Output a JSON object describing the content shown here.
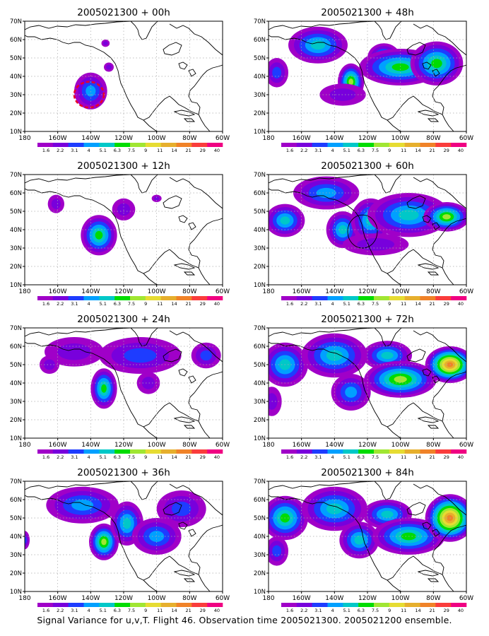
{
  "footer": "Signal Variance for u,v,T. Flight 46. Observation time 2005021300. 2005021200 ensemble.",
  "colors": {
    "levels": [
      "#a000c8",
      "#7800dc",
      "#1e3cff",
      "#00a0ff",
      "#00c8c8",
      "#00dc00",
      "#a0e632",
      "#e6dc32",
      "#e6af2d",
      "#f08228",
      "#fa3c3c",
      "#f00082"
    ],
    "land": "#ffffff",
    "coast": "#000000",
    "grid": "#aaaaaa"
  },
  "chart_data": [
    {
      "type": "heatmap",
      "title": "2005021300 + 00h",
      "xticks": [
        "180",
        "160W",
        "140W",
        "120W",
        "100W",
        "80W",
        "60W"
      ],
      "yticks": [
        "70N",
        "60N",
        "50N",
        "40N",
        "30N",
        "20N",
        "10N"
      ],
      "xlim": [
        -180,
        -60
      ],
      "ylim": [
        10,
        70
      ],
      "colorbar_labels": [
        "1.6",
        "2.2",
        "3.1",
        "4",
        "5.1",
        "6.3",
        "7.5",
        "9",
        "11",
        "14",
        "21",
        "29",
        "40"
      ],
      "blobs": [
        {
          "lon": -140,
          "lat": 32,
          "rlon": 10,
          "rlat": 10,
          "peak": 3
        },
        {
          "lon": -129,
          "lat": 45,
          "rlon": 3,
          "rlat": 2.5,
          "peak": 1
        },
        {
          "lon": -131,
          "lat": 58,
          "rlon": 2.5,
          "rlat": 2,
          "peak": 1
        }
      ],
      "obs_ring": {
        "lon": -141,
        "lat": 30,
        "rlon": 9,
        "rlat": 7,
        "color": "#e8002a"
      }
    },
    {
      "type": "heatmap",
      "title": "2005021300 + 48h",
      "xticks": [
        "180",
        "160W",
        "140W",
        "120W",
        "100W",
        "80W",
        "60W"
      ],
      "yticks": [
        "70N",
        "60N",
        "50N",
        "40N",
        "30N",
        "20N",
        "10N"
      ],
      "xlim": [
        -180,
        -60
      ],
      "ylim": [
        10,
        70
      ],
      "colorbar_labels": [
        "1.6",
        "2.2",
        "3.1",
        "4",
        "5.1",
        "6.3",
        "7.5",
        "9",
        "11",
        "14",
        "21",
        "29",
        "40"
      ],
      "blobs": [
        {
          "lon": -175,
          "lat": 42,
          "rlon": 7,
          "rlat": 8,
          "peak": 2
        },
        {
          "lon": -150,
          "lat": 57,
          "rlon": 18,
          "rlat": 10,
          "peak": 4
        },
        {
          "lon": -130,
          "lat": 37,
          "rlon": 8,
          "rlat": 10,
          "peak": 6
        },
        {
          "lon": -110,
          "lat": 50,
          "rlon": 10,
          "rlat": 8,
          "peak": 4
        },
        {
          "lon": -100,
          "lat": 45,
          "rlon": 25,
          "rlat": 10,
          "peak": 5
        },
        {
          "lon": -78,
          "lat": 47,
          "rlon": 16,
          "rlat": 12,
          "peak": 5
        },
        {
          "lon": -135,
          "lat": 30,
          "rlon": 14,
          "rlat": 6,
          "peak": 1
        }
      ]
    },
    {
      "type": "heatmap",
      "title": "2005021300 + 12h",
      "xticks": [
        "180",
        "160W",
        "140W",
        "120W",
        "100W",
        "80W",
        "60W"
      ],
      "yticks": [
        "70N",
        "60N",
        "50N",
        "40N",
        "30N",
        "20N",
        "10N"
      ],
      "xlim": [
        -180,
        -60
      ],
      "ylim": [
        10,
        70
      ],
      "colorbar_labels": [
        "1.6",
        "2.2",
        "3.1",
        "4",
        "5.1",
        "6.3",
        "7.5",
        "9",
        "11",
        "14",
        "21",
        "29",
        "40"
      ],
      "blobs": [
        {
          "lon": -135,
          "lat": 37,
          "rlon": 11,
          "rlat": 11,
          "peak": 5
        },
        {
          "lon": -161,
          "lat": 54,
          "rlon": 5,
          "rlat": 5,
          "peak": 1
        },
        {
          "lon": -120,
          "lat": 51,
          "rlon": 7,
          "rlat": 6,
          "peak": 1
        },
        {
          "lon": -100,
          "lat": 57,
          "rlon": 3,
          "rlat": 2,
          "peak": 1
        }
      ]
    },
    {
      "type": "heatmap",
      "title": "2005021300 + 60h",
      "xticks": [
        "180",
        "160W",
        "140W",
        "120W",
        "100W",
        "80W",
        "60W"
      ],
      "yticks": [
        "70N",
        "60N",
        "50N",
        "40N",
        "30N",
        "20N",
        "10N"
      ],
      "xlim": [
        -180,
        -60
      ],
      "ylim": [
        10,
        70
      ],
      "colorbar_labels": [
        "1.6",
        "2.2",
        "3.1",
        "4",
        "5.1",
        "6.3",
        "7.5",
        "9",
        "11",
        "14",
        "21",
        "29",
        "40"
      ],
      "blobs": [
        {
          "lon": -170,
          "lat": 45,
          "rlon": 12,
          "rlat": 9,
          "peak": 4
        },
        {
          "lon": -145,
          "lat": 60,
          "rlon": 20,
          "rlat": 9,
          "peak": 3
        },
        {
          "lon": -135,
          "lat": 40,
          "rlon": 10,
          "rlat": 10,
          "peak": 4
        },
        {
          "lon": -118,
          "lat": 45,
          "rlon": 12,
          "rlat": 12,
          "peak": 4
        },
        {
          "lon": -95,
          "lat": 48,
          "rlon": 25,
          "rlat": 12,
          "peak": 4
        },
        {
          "lon": -72,
          "lat": 47,
          "rlon": 14,
          "rlat": 8,
          "peak": 6
        },
        {
          "lon": -115,
          "lat": 32,
          "rlon": 20,
          "rlat": 6,
          "peak": 1
        }
      ],
      "obs_ring": {
        "lon": -123,
        "lat": 39,
        "rlon": 9,
        "rlat": 9,
        "color": "#000000"
      }
    },
    {
      "type": "heatmap",
      "title": "2005021300 + 24h",
      "xticks": [
        "180",
        "160W",
        "140W",
        "120W",
        "100W",
        "80W",
        "60W"
      ],
      "yticks": [
        "70N",
        "60N",
        "50N",
        "40N",
        "30N",
        "20N",
        "10N"
      ],
      "xlim": [
        -180,
        -60
      ],
      "ylim": [
        10,
        70
      ],
      "colorbar_labels": [
        "1.6",
        "2.2",
        "3.1",
        "4",
        "5.1",
        "6.3",
        "7.5",
        "9",
        "11",
        "14",
        "21",
        "29",
        "40"
      ],
      "blobs": [
        {
          "lon": -132,
          "lat": 37,
          "rlon": 8,
          "rlat": 11,
          "peak": 5
        },
        {
          "lon": -150,
          "lat": 57,
          "rlon": 18,
          "rlat": 8,
          "peak": 1
        },
        {
          "lon": -110,
          "lat": 55,
          "rlon": 25,
          "rlat": 10,
          "peak": 2
        },
        {
          "lon": -70,
          "lat": 55,
          "rlon": 9,
          "rlat": 7,
          "peak": 2
        },
        {
          "lon": -105,
          "lat": 40,
          "rlon": 7,
          "rlat": 6,
          "peak": 1
        },
        {
          "lon": -165,
          "lat": 50,
          "rlon": 6,
          "rlat": 5,
          "peak": 1
        }
      ]
    },
    {
      "type": "heatmap",
      "title": "2005021300 + 72h",
      "xticks": [
        "180",
        "160W",
        "140W",
        "120W",
        "100W",
        "80W",
        "60W"
      ],
      "yticks": [
        "70N",
        "60N",
        "50N",
        "40N",
        "30N",
        "20N",
        "10N"
      ],
      "xlim": [
        -180,
        -60
      ],
      "ylim": [
        10,
        70
      ],
      "colorbar_labels": [
        "1.6",
        "2.2",
        "3.1",
        "4",
        "5.1",
        "6.3",
        "7.5",
        "9",
        "11",
        "14",
        "21",
        "29",
        "40"
      ],
      "blobs": [
        {
          "lon": -170,
          "lat": 50,
          "rlon": 14,
          "rlat": 12,
          "peak": 4
        },
        {
          "lon": -140,
          "lat": 55,
          "rlon": 20,
          "rlat": 12,
          "peak": 4
        },
        {
          "lon": -130,
          "lat": 35,
          "rlon": 12,
          "rlat": 10,
          "peak": 3
        },
        {
          "lon": -108,
          "lat": 55,
          "rlon": 15,
          "rlat": 8,
          "peak": 4
        },
        {
          "lon": -100,
          "lat": 42,
          "rlon": 22,
          "rlat": 10,
          "peak": 6
        },
        {
          "lon": -70,
          "lat": 50,
          "rlon": 15,
          "rlat": 10,
          "peak": 9
        },
        {
          "lon": -178,
          "lat": 30,
          "rlon": 6,
          "rlat": 8,
          "peak": 1
        }
      ]
    },
    {
      "type": "heatmap",
      "title": "2005021300 + 36h",
      "xticks": [
        "180",
        "160W",
        "140W",
        "120W",
        "100W",
        "80W",
        "60W"
      ],
      "yticks": [
        "70N",
        "60N",
        "50N",
        "40N",
        "30N",
        "20N",
        "10N"
      ],
      "xlim": [
        -180,
        -60
      ],
      "ylim": [
        10,
        70
      ],
      "colorbar_labels": [
        "1.6",
        "2.2",
        "3.1",
        "4",
        "5.1",
        "6.3",
        "7.5",
        "9",
        "11",
        "14",
        "21",
        "29",
        "40"
      ],
      "blobs": [
        {
          "lon": -132,
          "lat": 37,
          "rlon": 9,
          "rlat": 10,
          "peak": 6
        },
        {
          "lon": -145,
          "lat": 57,
          "rlon": 22,
          "rlat": 10,
          "peak": 3
        },
        {
          "lon": -118,
          "lat": 47,
          "rlon": 10,
          "rlat": 12,
          "peak": 4
        },
        {
          "lon": -100,
          "lat": 40,
          "rlon": 15,
          "rlat": 10,
          "peak": 3
        },
        {
          "lon": -85,
          "lat": 55,
          "rlon": 15,
          "rlat": 10,
          "peak": 2
        },
        {
          "lon": -180,
          "lat": 38,
          "rlon": 3,
          "rlat": 5,
          "peak": 2
        }
      ]
    },
    {
      "type": "heatmap",
      "title": "2005021300 + 84h",
      "xticks": [
        "180",
        "160W",
        "140W",
        "120W",
        "100W",
        "80W",
        "60W"
      ],
      "yticks": [
        "70N",
        "60N",
        "50N",
        "40N",
        "30N",
        "20N",
        "10N"
      ],
      "xlim": [
        -180,
        -60
      ],
      "ylim": [
        10,
        70
      ],
      "colorbar_labels": [
        "1.6",
        "2.2",
        "3.1",
        "4",
        "5.1",
        "6.3",
        "7.5",
        "9",
        "11",
        "14",
        "21",
        "29",
        "40"
      ],
      "blobs": [
        {
          "lon": -170,
          "lat": 50,
          "rlon": 14,
          "rlat": 12,
          "peak": 5
        },
        {
          "lon": -140,
          "lat": 55,
          "rlon": 20,
          "rlat": 12,
          "peak": 4
        },
        {
          "lon": -125,
          "lat": 38,
          "rlon": 12,
          "rlat": 10,
          "peak": 4
        },
        {
          "lon": -108,
          "lat": 52,
          "rlon": 15,
          "rlat": 8,
          "peak": 4
        },
        {
          "lon": -95,
          "lat": 40,
          "rlon": 22,
          "rlat": 10,
          "peak": 5
        },
        {
          "lon": -70,
          "lat": 50,
          "rlon": 15,
          "rlat": 13,
          "peak": 9
        },
        {
          "lon": -175,
          "lat": 32,
          "rlon": 7,
          "rlat": 8,
          "peak": 2
        }
      ]
    }
  ]
}
